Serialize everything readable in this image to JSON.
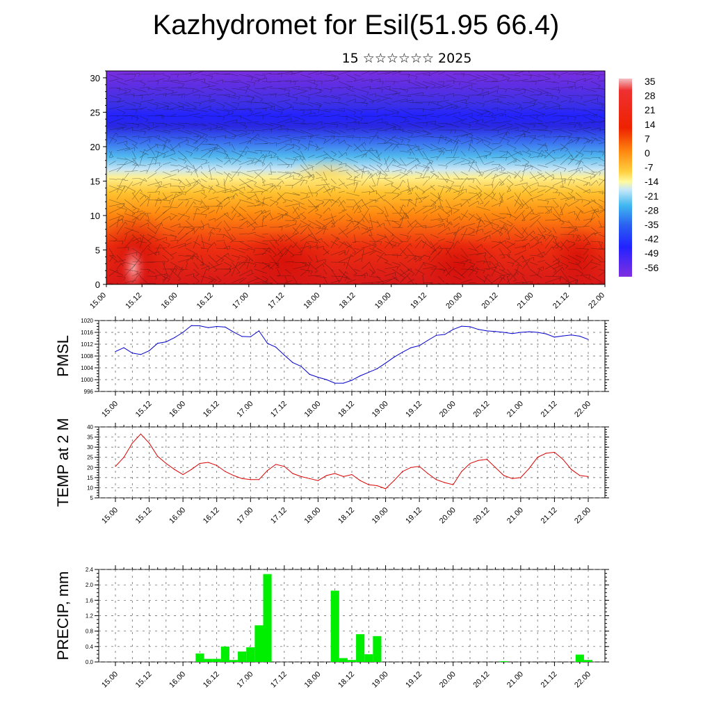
{
  "title": "Kazhydromet for Esil(51.95 66.4)",
  "subtitle": "15 ☆☆☆☆☆☆ 2025",
  "time_ticks": [
    "15.00",
    "15.12",
    "16.00",
    "16.12",
    "17.00",
    "17.12",
    "18.00",
    "18.12",
    "19.00",
    "19.12",
    "20.00",
    "20.12",
    "21.00",
    "21.12",
    "22.00"
  ],
  "chart_data": [
    {
      "type": "heatmap",
      "title": "",
      "x": [
        "15.00",
        "15.12",
        "16.00",
        "16.12",
        "17.00",
        "17.12",
        "18.00",
        "18.12",
        "19.00",
        "19.12",
        "20.00",
        "20.12",
        "21.00",
        "21.12",
        "22.00"
      ],
      "ylim": [
        0,
        31
      ],
      "yticks": [
        0,
        5,
        10,
        15,
        20,
        25,
        30
      ],
      "colorbar_labels": [
        "35",
        "28",
        "21",
        "14",
        "7",
        "0",
        "-7",
        "-14",
        "-21",
        "-28",
        "-35",
        "-42",
        "-49",
        "-56"
      ],
      "colorbar_range": [
        -60,
        38
      ],
      "colors": {
        "warm": "#e0201a",
        "mid": "#ffe36a",
        "cool": "#45b8ee",
        "cold": "#2222dd",
        "deep": "#7a2de0"
      }
    },
    {
      "type": "line",
      "ylabel": "PMSL",
      "ylim": [
        996,
        1020
      ],
      "yticks": [
        "996",
        "1000",
        "1004",
        "1008",
        "1012",
        "1016",
        "1020"
      ],
      "color": "#0000cc",
      "x": [
        0,
        3,
        6,
        9,
        12,
        15,
        18,
        21,
        24,
        27,
        30,
        33,
        36,
        39,
        42,
        45,
        48,
        51,
        54,
        57,
        60,
        63,
        66,
        69,
        72,
        75,
        78,
        81,
        84,
        87,
        90,
        93,
        96,
        99,
        102,
        105,
        108,
        111,
        114,
        117,
        120,
        123,
        126,
        129,
        132,
        135,
        138,
        141,
        144,
        147,
        150,
        153,
        156,
        159,
        162,
        165,
        168
      ],
      "values": [
        1009.5,
        1010.8,
        1009.0,
        1008.5,
        1009.8,
        1012.3,
        1012.8,
        1014.2,
        1016.0,
        1018.3,
        1018.2,
        1017.6,
        1018.0,
        1017.8,
        1016.1,
        1014.6,
        1014.5,
        1016.5,
        1012.3,
        1011.0,
        1008.3,
        1005.8,
        1004.5,
        1001.8,
        1000.8,
        1000.0,
        998.8,
        998.8,
        999.8,
        1001.3,
        1002.5,
        1003.7,
        1005.6,
        1007.6,
        1009.3,
        1010.8,
        1011.5,
        1013.3,
        1015.0,
        1015.3,
        1017.0,
        1018.1,
        1017.9,
        1017.0,
        1016.5,
        1016.3,
        1016.0,
        1015.6,
        1016.0,
        1016.2,
        1016.0,
        1015.5,
        1014.4,
        1014.8,
        1015.1,
        1014.7,
        1013.6
      ]
    },
    {
      "type": "line",
      "ylabel": "TEMP at 2 M",
      "ylim": [
        5,
        40
      ],
      "yticks": [
        "5",
        "10",
        "15",
        "20",
        "25",
        "30",
        "35",
        "40"
      ],
      "color": "#dd0000",
      "x": [
        0,
        3,
        6,
        9,
        12,
        15,
        18,
        21,
        24,
        27,
        30,
        33,
        36,
        39,
        42,
        45,
        48,
        51,
        54,
        57,
        60,
        63,
        66,
        69,
        72,
        75,
        78,
        81,
        84,
        87,
        90,
        93,
        96,
        99,
        102,
        105,
        108,
        111,
        114,
        117,
        120,
        123,
        126,
        129,
        132,
        135,
        138,
        141,
        144,
        147,
        150,
        153,
        156,
        159,
        162,
        165,
        168
      ],
      "values": [
        20.5,
        25.0,
        32.0,
        36.5,
        32.0,
        25.5,
        22.0,
        19.0,
        16.5,
        19.0,
        22.0,
        22.5,
        21.0,
        18.0,
        16.0,
        14.5,
        14.0,
        14.0,
        18.5,
        21.5,
        20.5,
        17.0,
        15.5,
        14.5,
        13.5,
        16.0,
        17.0,
        15.5,
        16.5,
        13.5,
        11.5,
        11.0,
        9.5,
        13.5,
        18.0,
        20.0,
        20.5,
        17.0,
        14.0,
        12.5,
        11.5,
        18.0,
        22.0,
        23.5,
        24.0,
        20.0,
        16.0,
        14.5,
        15.0,
        19.5,
        25.0,
        27.0,
        27.5,
        24.0,
        19.0,
        16.0,
        15.5
      ]
    },
    {
      "type": "bar",
      "ylabel": "PRECIP, mm",
      "ylim": [
        0,
        2.4
      ],
      "yticks": [
        "0.0",
        "0.4",
        "0.8",
        "1.2",
        "1.6",
        "2.0",
        "2.4"
      ],
      "color": "#00ee00",
      "x": [
        30,
        33,
        36,
        39,
        42,
        45,
        48,
        51,
        54,
        57,
        78,
        81,
        84,
        87,
        90,
        93,
        138,
        165,
        168
      ],
      "values": [
        0.22,
        0.08,
        0.08,
        0.4,
        0.05,
        0.27,
        0.38,
        0.95,
        2.28,
        0.0,
        1.85,
        0.1,
        0.05,
        0.72,
        0.2,
        0.67,
        0.02,
        0.19,
        0.05
      ]
    }
  ]
}
